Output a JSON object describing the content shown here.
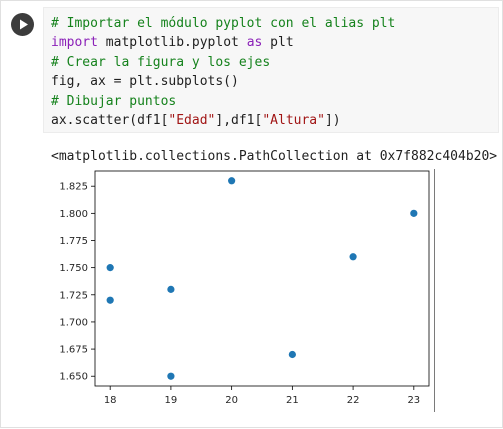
{
  "cell": {
    "code_lines": [
      [
        {
          "t": "# Importar el módulo pyplot con el alias plt",
          "c": "comment"
        }
      ],
      [
        {
          "t": "import",
          "c": "keyword"
        },
        {
          "t": " matplotlib.pyplot ",
          "c": "plain"
        },
        {
          "t": "as",
          "c": "keyword"
        },
        {
          "t": " plt",
          "c": "plain"
        }
      ],
      [
        {
          "t": "# Crear la figura y los ejes",
          "c": "comment"
        }
      ],
      [
        {
          "t": "fig, ax = plt.subplots()",
          "c": "plain"
        }
      ],
      [
        {
          "t": "# Dibujar puntos",
          "c": "comment"
        }
      ],
      [
        {
          "t": "ax.scatter(df1[",
          "c": "plain"
        },
        {
          "t": "\"Edad\"",
          "c": "string"
        },
        {
          "t": "],df1[",
          "c": "plain"
        },
        {
          "t": "\"Altura\"",
          "c": "string"
        },
        {
          "t": "])",
          "c": "plain"
        }
      ]
    ]
  },
  "output": {
    "text": "<matplotlib.collections.PathCollection at 0x7f882c404b20>"
  },
  "colors": {
    "marker": "#1f77b4",
    "comment": "#15821c",
    "keyword": "#8b21b8",
    "string": "#a11515"
  },
  "chart_data": {
    "type": "scatter",
    "x": [
      18,
      18,
      19,
      19,
      20,
      21,
      22,
      23
    ],
    "y": [
      1.75,
      1.72,
      1.73,
      1.65,
      1.83,
      1.67,
      1.76,
      1.8
    ],
    "xticks": [
      18,
      19,
      20,
      21,
      22,
      23
    ],
    "yticks": [
      1.65,
      1.675,
      1.7,
      1.725,
      1.75,
      1.775,
      1.8,
      1.825
    ],
    "ytick_labels": [
      "1.650",
      "1.675",
      "1.700",
      "1.725",
      "1.750",
      "1.775",
      "1.800",
      "1.825"
    ],
    "xlim": [
      17.75,
      23.25
    ],
    "ylim": [
      1.641,
      1.839
    ],
    "grid": false,
    "title": "",
    "xlabel": "",
    "ylabel": ""
  }
}
